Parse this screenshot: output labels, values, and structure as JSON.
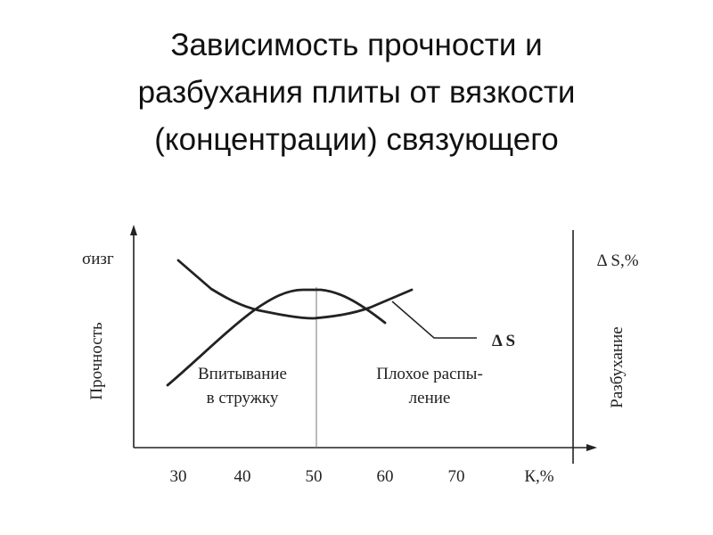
{
  "header": {
    "title_lines": [
      "Зависимость прочности и",
      "разбухания плиты от вязкости",
      "(концентрации) связующего"
    ]
  },
  "diagram": {
    "left_axis_symbol": "σизг",
    "left_axis_label": "Прочность",
    "right_axis_symbol": "Δ S,%",
    "right_axis_label": "Разбухание",
    "x_tick_labels": [
      "30",
      "40",
      "50",
      "60",
      "70"
    ],
    "x_axis_label": "К,%",
    "curve_label": "Δ S",
    "region_left": [
      "Впитывание",
      "в стружку"
    ],
    "region_right": [
      "Плохое распы-",
      "ление"
    ]
  }
}
